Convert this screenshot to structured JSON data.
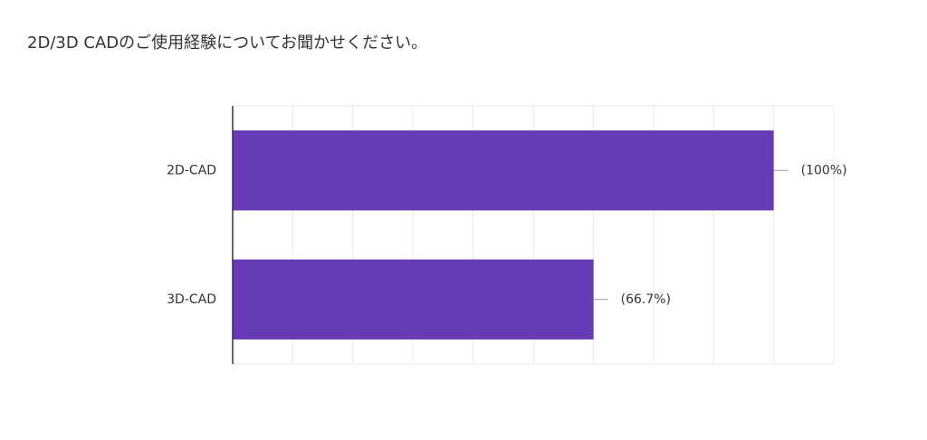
{
  "chart_data": {
    "type": "bar",
    "orientation": "horizontal",
    "title": "2D/3D CADのご使用経験についてお聞かせください。",
    "categories": [
      "2D-CAD",
      "3D-CAD"
    ],
    "values": [
      100,
      66.7
    ],
    "value_labels": [
      "(100%)",
      "(66.7%)"
    ],
    "color": "#673ab7",
    "xlim": [
      0,
      111.1
    ],
    "xticks": [
      0,
      11.1,
      22.2,
      33.3,
      44.4,
      55.6,
      66.7,
      77.8,
      88.9,
      100,
      111.1
    ],
    "grid": true
  }
}
